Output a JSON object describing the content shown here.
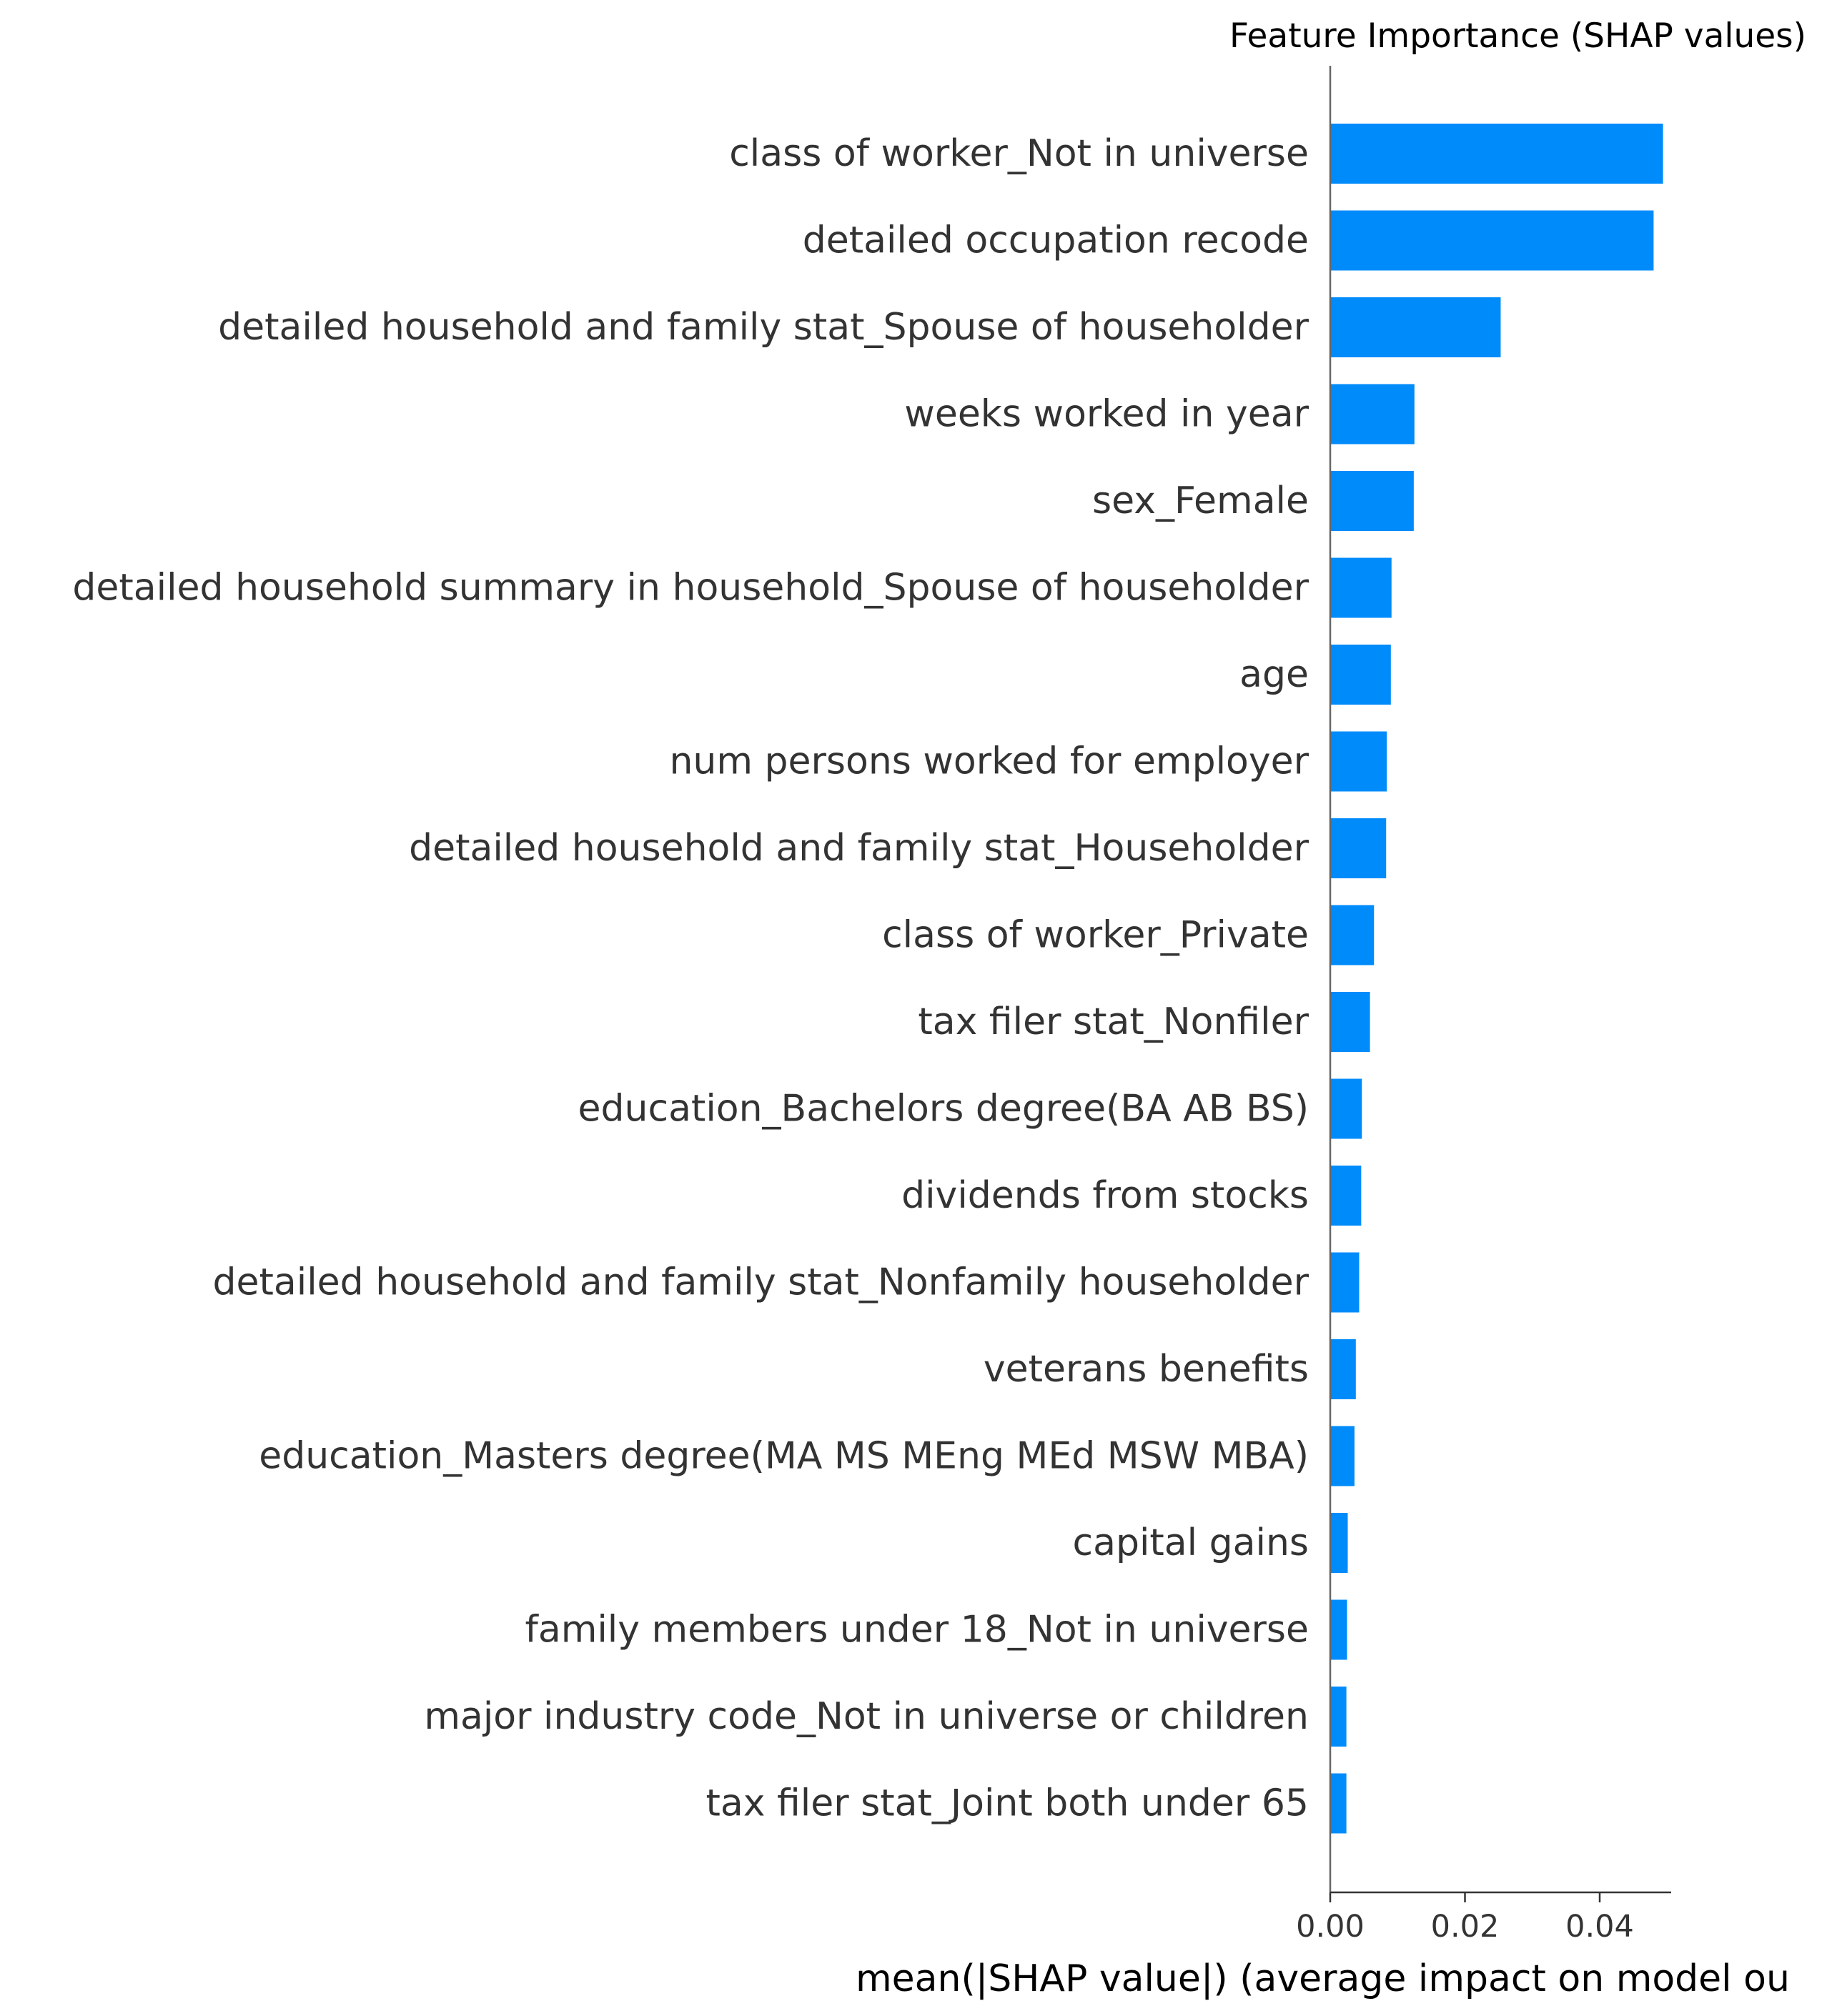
{
  "chart_data": {
    "type": "bar",
    "orientation": "horizontal",
    "title": "Feature Importance (SHAP values)",
    "xlabel": "mean(|SHAP value|) (average impact on model ou",
    "ylabel": "",
    "xlim": [
      0,
      0.052
    ],
    "xticks": [
      0.0,
      0.02,
      0.04
    ],
    "xtick_labels": [
      "0.00",
      "0.02",
      "0.04"
    ],
    "bar_color": "#008bfb",
    "grid": false,
    "categories": [
      "class of worker_Not in universe",
      "detailed occupation recode",
      "detailed household and family stat_Spouse of householder",
      "weeks worked in year",
      "sex_Female",
      "detailed household summary in household_Spouse of householder",
      "age",
      "num persons worked for employer",
      "detailed household and family stat_Householder",
      "class of worker_Private",
      "tax filer stat_Nonfiler",
      "education_Bachelors degree(BA AB BS)",
      "dividends from stocks",
      "detailed household and family stat_Nonfamily householder",
      "veterans benefits",
      "education_Masters degree(MA MS MEng MEd MSW MBA)",
      "capital gains",
      "family members under 18_Not in universe",
      "major industry code_Not in universe or children",
      "tax filer stat_Joint both under 65"
    ],
    "values": [
      0.0494,
      0.048,
      0.0253,
      0.0125,
      0.0124,
      0.0091,
      0.009,
      0.0084,
      0.0083,
      0.0065,
      0.0059,
      0.0047,
      0.0046,
      0.0043,
      0.0038,
      0.0036,
      0.0026,
      0.0025,
      0.0024,
      0.0024
    ]
  }
}
